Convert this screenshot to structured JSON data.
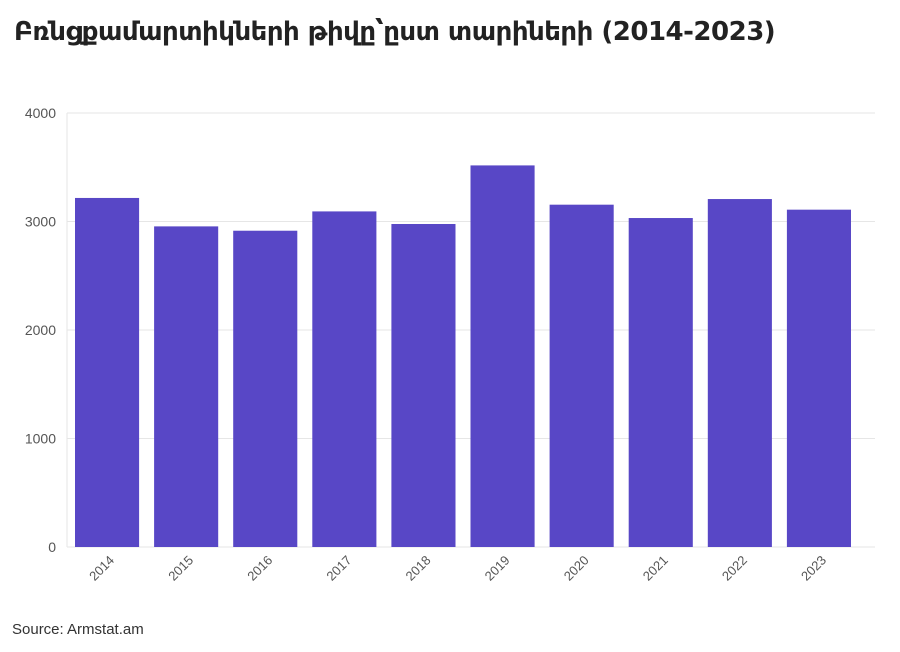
{
  "chart_data": {
    "type": "bar",
    "title": "Բռնցքամարտիկների թիվը՝ըստ տարիների (2014-2023)",
    "categories": [
      "2014",
      "2015",
      "2016",
      "2017",
      "2018",
      "2019",
      "2020",
      "2021",
      "2022",
      "2023"
    ],
    "values": [
      3217,
      2955,
      2915,
      3093,
      2977,
      3517,
      3155,
      3032,
      3207,
      3109
    ],
    "ylim": [
      0,
      4000
    ],
    "yticks": [
      0,
      1000,
      2000,
      3000,
      4000
    ],
    "xlabel": "",
    "ylabel": "",
    "grid": true,
    "bar_color": "#5847c6"
  },
  "source": "Source: Armstat.am"
}
